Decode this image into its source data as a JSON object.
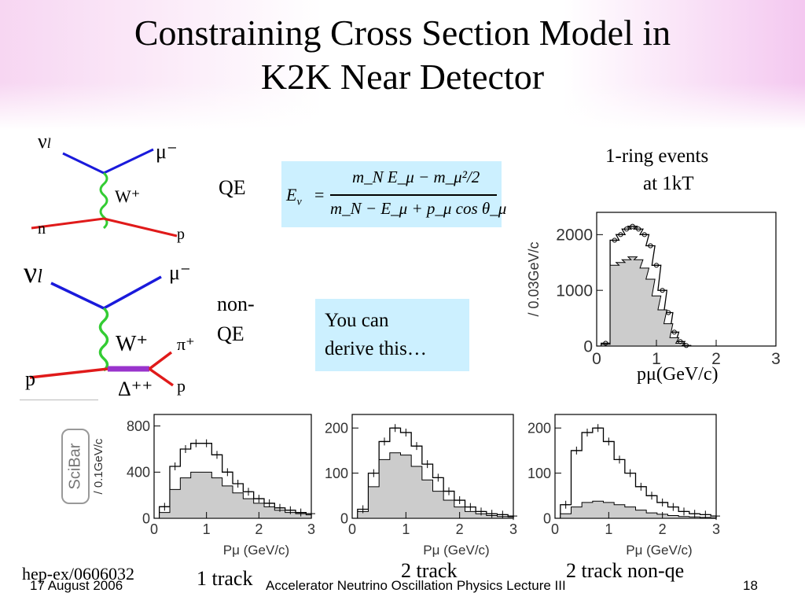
{
  "title": {
    "line1": "Constraining Cross Section Model in",
    "line2": "K2K Near Detector"
  },
  "qe_diagram": {
    "nu_label": "ν",
    "nu_sub": "l",
    "mu_label": "μ⁻",
    "w_label": "W⁺",
    "n_label": "n",
    "p_label": "p"
  },
  "nonqe_diagram": {
    "nu_label": "ν",
    "nu_sub": "l",
    "mu_label": "μ⁻",
    "w_label": "W⁺",
    "pi_label": "π⁺",
    "p_in_label": "p",
    "p_out_label": "p",
    "delta_label": "Δ⁺⁺"
  },
  "qe_label": "QE",
  "nonqe_label_1": "non-",
  "nonqe_label_2": "QE",
  "formula": {
    "lhs": "E",
    "lhs_sub": "ν",
    "equals": "=",
    "numerator": "m",
    "num_text": "m_N E_μ − m_μ²/2",
    "den_text": "m_N − E_μ + p_μ cos θ_μ"
  },
  "callout": {
    "line1": "You can",
    "line2": "derive this…"
  },
  "scibar_label": "SciBar",
  "chart_data": [
    {
      "type": "line",
      "title": "1-ring events",
      "subtitle": "at 1kT",
      "ylabel": "/ 0.03GeV/c",
      "xlabel": "pμ(GeV/c)",
      "xlim": [
        0,
        3
      ],
      "ylim": [
        0,
        2400
      ],
      "xticks": [
        "0",
        "1",
        "2",
        "3"
      ],
      "yticks": [
        "0",
        "1000",
        "2000"
      ],
      "x": [
        0.15,
        0.3,
        0.4,
        0.5,
        0.6,
        0.7,
        0.8,
        0.9,
        1.0,
        1.1,
        1.2,
        1.3,
        1.4,
        1.5
      ],
      "series": [
        {
          "values": [
            50,
            1900,
            2000,
            2100,
            2150,
            2100,
            2000,
            1800,
            1450,
            1000,
            600,
            250,
            80,
            10
          ]
        },
        {
          "values": [
            30,
            1450,
            1500,
            1550,
            1600,
            1550,
            1400,
            1200,
            900,
            650,
            400,
            150,
            50,
            5
          ]
        }
      ]
    },
    {
      "type": "line",
      "ylabel": "/ 0.1GeV/c",
      "xlabel": "Pμ (GeV/c)",
      "caption": "1 track",
      "xlim": [
        0,
        3
      ],
      "ylim": [
        0,
        900
      ],
      "xticks": [
        "0",
        "1",
        "2",
        "3"
      ],
      "yticks": [
        "0",
        "400",
        "800"
      ],
      "x": [
        0.2,
        0.4,
        0.6,
        0.8,
        1.0,
        1.2,
        1.4,
        1.6,
        1.8,
        2.0,
        2.2,
        2.4,
        2.6,
        2.8,
        3.0
      ],
      "series": [
        {
          "values": [
            100,
            450,
            600,
            650,
            650,
            550,
            400,
            300,
            230,
            170,
            130,
            90,
            70,
            50,
            40
          ]
        },
        {
          "values": [
            50,
            250,
            350,
            400,
            400,
            350,
            280,
            220,
            170,
            130,
            100,
            70,
            50,
            40,
            30
          ]
        }
      ]
    },
    {
      "type": "line",
      "xlabel": "Pμ (GeV/c)",
      "caption": "2 track",
      "xlim": [
        0,
        3
      ],
      "ylim": [
        0,
        230
      ],
      "xticks": [
        "0",
        "1",
        "2",
        "3"
      ],
      "yticks": [
        "0",
        "100",
        "200"
      ],
      "x": [
        0.2,
        0.4,
        0.6,
        0.8,
        1.0,
        1.2,
        1.4,
        1.6,
        1.8,
        2.0,
        2.2,
        2.4,
        2.6,
        2.8,
        3.0
      ],
      "series": [
        {
          "values": [
            20,
            100,
            170,
            200,
            190,
            160,
            120,
            90,
            60,
            40,
            25,
            15,
            10,
            8,
            5
          ]
        },
        {
          "values": [
            15,
            70,
            130,
            145,
            140,
            115,
            85,
            60,
            40,
            25,
            15,
            10,
            6,
            4,
            3
          ]
        }
      ]
    },
    {
      "type": "line",
      "xlabel": "Pμ (GeV/c)",
      "caption": "2 track non-qe",
      "xlim": [
        0,
        3
      ],
      "ylim": [
        0,
        230
      ],
      "xticks": [
        "0",
        "1",
        "2",
        "3"
      ],
      "yticks": [
        "0",
        "100",
        "200"
      ],
      "x": [
        0.2,
        0.4,
        0.6,
        0.8,
        1.0,
        1.2,
        1.4,
        1.6,
        1.8,
        2.0,
        2.2,
        2.4,
        2.6,
        2.8,
        3.0
      ],
      "series": [
        {
          "values": [
            30,
            150,
            190,
            200,
            170,
            130,
            100,
            70,
            50,
            35,
            25,
            15,
            10,
            8,
            5
          ]
        },
        {
          "values": [
            10,
            25,
            35,
            38,
            35,
            30,
            25,
            18,
            12,
            9,
            6,
            4,
            3,
            2,
            1
          ]
        }
      ]
    }
  ],
  "footer": {
    "date": "17 August 2006",
    "ref": "hep-ex/0606032",
    "lecture": "Accelerator Neutrino Oscillation Physics Lecture III",
    "page": "18"
  },
  "colors": {
    "neutrino": "#1a1adb",
    "boson": "#33cc33",
    "nucleon": "#e01a1a",
    "delta": "#9933cc",
    "fill": "#cccccc",
    "accent_bg": "#ccf0ff"
  }
}
